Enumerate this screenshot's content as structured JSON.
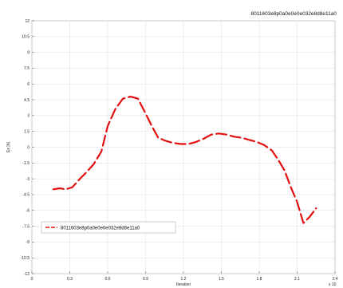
{
  "chart_data": {
    "type": "line",
    "title": "8011603e8p0a0e0e0e032e8d8e11a0",
    "xlabel": "Iteration",
    "ylabel": "Ex [h]",
    "x_exponent_label": "x 10",
    "xlim": [
      0,
      2.4
    ],
    "ylim": [
      -12,
      12
    ],
    "xticks": [
      0,
      0.3,
      0.6,
      0.9,
      1.2,
      1.5,
      1.8,
      2.1,
      2.4
    ],
    "xtick_labels": [
      "0",
      "0.3",
      "0.6",
      "0.9",
      "1.2",
      "1.5",
      "1.8",
      "2.1",
      "2.4"
    ],
    "yticks": [
      12,
      10.5,
      9,
      7.5,
      6,
      4.5,
      3,
      1.5,
      0,
      -1.5,
      -3,
      -4.5,
      -6,
      -7.5,
      -9,
      -10.5,
      -12
    ],
    "ytick_labels": [
      "12",
      "10.5",
      "9",
      "7.5",
      "6",
      "4.5",
      "3",
      "1.5",
      "0",
      "-1.5",
      "-3",
      "-4.5",
      "-6",
      "-7.5",
      "-9",
      "-10.5",
      "-12"
    ],
    "grid": true,
    "legend_position": "lower-left",
    "series": [
      {
        "name": "8011603e8p0a0e0e0e032e8d8e11a0",
        "color": "#e01010",
        "style": "dashed",
        "x": [
          0.17,
          0.22,
          0.27,
          0.32,
          0.38,
          0.43,
          0.49,
          0.55,
          0.6,
          0.66,
          0.72,
          0.78,
          0.84,
          0.9,
          0.95,
          1.0,
          1.06,
          1.12,
          1.18,
          1.24,
          1.3,
          1.36,
          1.42,
          1.48,
          1.54,
          1.6,
          1.66,
          1.72,
          1.78,
          1.84,
          1.9,
          1.95,
          2.0,
          2.05,
          2.1,
          2.15,
          2.2,
          2.25
        ],
        "y": [
          -4.0,
          -3.9,
          -4.0,
          -3.8,
          -3.0,
          -2.4,
          -1.6,
          -0.4,
          2.0,
          3.6,
          4.6,
          4.8,
          4.6,
          3.2,
          2.0,
          0.9,
          0.6,
          0.4,
          0.3,
          0.3,
          0.5,
          0.8,
          1.2,
          1.3,
          1.2,
          1.0,
          0.9,
          0.7,
          0.5,
          0.2,
          -0.3,
          -1.2,
          -2.2,
          -3.8,
          -5.2,
          -7.2,
          -6.6,
          -5.8
        ]
      }
    ]
  }
}
